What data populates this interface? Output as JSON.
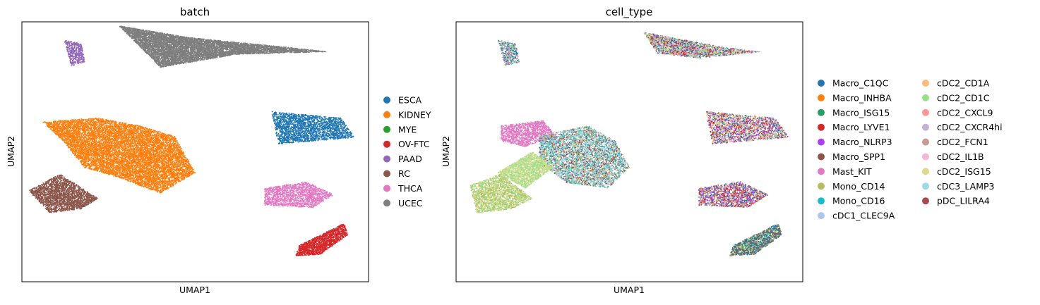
{
  "chart_data": [
    {
      "type": "scatter",
      "title": "batch",
      "xlabel": "UMAP1",
      "ylabel": "UMAP2",
      "grid": false,
      "ticks": false,
      "legend_position": "right",
      "legend": [
        {
          "label": "ESCA",
          "color": "#1f77b4"
        },
        {
          "label": "KIDNEY",
          "color": "#ff7f0e"
        },
        {
          "label": "MYE",
          "color": "#2ca02c"
        },
        {
          "label": "OV-FTC",
          "color": "#d62728"
        },
        {
          "label": "PAAD",
          "color": "#9467bd"
        },
        {
          "label": "RC",
          "color": "#8c564b"
        },
        {
          "label": "THCA",
          "color": "#e377c2"
        },
        {
          "label": "UCEC",
          "color": "#7f7f7f"
        }
      ],
      "clusters": [
        {
          "batch": "UCEC",
          "points": [
            [
              0.28,
              0.015
            ],
            [
              0.48,
              0.06
            ],
            [
              0.78,
              0.1
            ],
            [
              0.88,
              0.115
            ],
            [
              0.62,
              0.125
            ],
            [
              0.4,
              0.175
            ]
          ]
        },
        {
          "batch": "PAAD",
          "points": [
            [
              0.122,
              0.07
            ],
            [
              0.172,
              0.085
            ],
            [
              0.182,
              0.155
            ],
            [
              0.142,
              0.17
            ]
          ]
        },
        {
          "batch": "ESCA",
          "points": [
            [
              0.72,
              0.345
            ],
            [
              0.92,
              0.37
            ],
            [
              0.96,
              0.445
            ],
            [
              0.74,
              0.47
            ]
          ]
        },
        {
          "batch": "KIDNEY",
          "points": [
            [
              0.06,
              0.385
            ],
            [
              0.22,
              0.37
            ],
            [
              0.34,
              0.4
            ],
            [
              0.44,
              0.44
            ],
            [
              0.5,
              0.58
            ],
            [
              0.4,
              0.66
            ],
            [
              0.28,
              0.6
            ],
            [
              0.18,
              0.56
            ],
            [
              0.12,
              0.46
            ]
          ]
        },
        {
          "batch": "RC",
          "points": [
            [
              0.02,
              0.65
            ],
            [
              0.11,
              0.585
            ],
            [
              0.22,
              0.68
            ],
            [
              0.17,
              0.72
            ],
            [
              0.08,
              0.735
            ]
          ]
        },
        {
          "batch": "THCA",
          "points": [
            [
              0.7,
              0.64
            ],
            [
              0.82,
              0.615
            ],
            [
              0.9,
              0.665
            ],
            [
              0.84,
              0.715
            ],
            [
              0.7,
              0.705
            ]
          ]
        },
        {
          "batch": "OV-FTC",
          "points": [
            [
              0.8,
              0.86
            ],
            [
              0.93,
              0.775
            ],
            [
              0.94,
              0.82
            ],
            [
              0.86,
              0.895
            ],
            [
              0.79,
              0.9
            ]
          ]
        }
      ]
    },
    {
      "type": "scatter",
      "title": "cell_type",
      "xlabel": "UMAP1",
      "ylabel": "UMAP2",
      "grid": false,
      "ticks": false,
      "legend_position": "right",
      "legend": [
        {
          "label": "Macro_C1QC",
          "color": "#1f77b4"
        },
        {
          "label": "Macro_INHBA",
          "color": "#ff7f0e"
        },
        {
          "label": "Macro_ISG15",
          "color": "#279e68"
        },
        {
          "label": "Macro_LYVE1",
          "color": "#d62728"
        },
        {
          "label": "Macro_NLRP3",
          "color": "#aa40fc"
        },
        {
          "label": "Macro_SPP1",
          "color": "#8c564b"
        },
        {
          "label": "Mast_KIT",
          "color": "#e377c2"
        },
        {
          "label": "Mono_CD14",
          "color": "#b5bd61"
        },
        {
          "label": "Mono_CD16",
          "color": "#17becf"
        },
        {
          "label": "cDC1_CLEC9A",
          "color": "#aec7e8"
        },
        {
          "label": "cDC2_CD1A",
          "color": "#ffbb78"
        },
        {
          "label": "cDC2_CD1C",
          "color": "#98df8a"
        },
        {
          "label": "cDC2_CXCL9",
          "color": "#ff9896"
        },
        {
          "label": "cDC2_CXCR4hi",
          "color": "#c5b0d5"
        },
        {
          "label": "cDC2_FCN1",
          "color": "#c49c94"
        },
        {
          "label": "cDC2_IL1B",
          "color": "#f7b6d2"
        },
        {
          "label": "cDC2_ISG15",
          "color": "#dbdb8d"
        },
        {
          "label": "cDC3_LAMP3",
          "color": "#9edae5"
        },
        {
          "label": "pDC_LILRA4",
          "color": "#ad494a"
        }
      ],
      "clusters": [
        {
          "types": [
            "Mast_KIT",
            "Macro_C1QC",
            "cDC2_CD1C"
          ],
          "points": [
            [
              0.122,
              0.07
            ],
            [
              0.172,
              0.085
            ],
            [
              0.182,
              0.155
            ],
            [
              0.142,
              0.17
            ]
          ]
        },
        {
          "types": [
            "cDC2_CD1C",
            "Macro_C1QC",
            "Mast_KIT",
            "Macro_LYVE1",
            "cDC3_LAMP3",
            "cDC2_ISG15"
          ],
          "points": [
            [
              0.54,
              0.04
            ],
            [
              0.62,
              0.06
            ],
            [
              0.78,
              0.1
            ],
            [
              0.88,
              0.115
            ],
            [
              0.7,
              0.14
            ],
            [
              0.58,
              0.12
            ]
          ]
        },
        {
          "types": [
            "Macro_LYVE1",
            "cDC2_CD1C",
            "Macro_C1QC",
            "cDC2_ISG15",
            "Macro_NLRP3",
            "cDC2_CXCL9"
          ],
          "points": [
            [
              0.72,
              0.345
            ],
            [
              0.92,
              0.37
            ],
            [
              0.96,
              0.445
            ],
            [
              0.74,
              0.47
            ]
          ]
        },
        {
          "types": [
            "Mast_KIT"
          ],
          "points": [
            [
              0.13,
              0.4
            ],
            [
              0.25,
              0.38
            ],
            [
              0.29,
              0.44
            ],
            [
              0.2,
              0.48
            ],
            [
              0.13,
              0.46
            ]
          ]
        },
        {
          "types": [
            "Mono_CD16",
            "cDC3_LAMP3",
            "cDC1_CLEC9A",
            "Mono_CD14",
            "pDC_LILRA4"
          ],
          "points": [
            [
              0.24,
              0.44
            ],
            [
              0.38,
              0.4
            ],
            [
              0.46,
              0.46
            ],
            [
              0.5,
              0.56
            ],
            [
              0.44,
              0.64
            ],
            [
              0.32,
              0.62
            ],
            [
              0.24,
              0.54
            ]
          ]
        },
        {
          "types": [
            "cDC2_CD1C",
            "cDC2_ISG15"
          ],
          "points": [
            [
              0.12,
              0.58
            ],
            [
              0.22,
              0.5
            ],
            [
              0.28,
              0.56
            ],
            [
              0.2,
              0.64
            ]
          ]
        },
        {
          "types": [
            "cDC2_ISG15",
            "Mono_CD14",
            "cDC2_CD1C"
          ],
          "points": [
            [
              0.04,
              0.63
            ],
            [
              0.13,
              0.585
            ],
            [
              0.22,
              0.68
            ],
            [
              0.16,
              0.72
            ],
            [
              0.06,
              0.735
            ]
          ]
        },
        {
          "types": [
            "Macro_NLRP3",
            "Macro_LYVE1",
            "Macro_INHBA",
            "Macro_C1QC",
            "cDC1_CLEC9A"
          ],
          "points": [
            [
              0.7,
              0.64
            ],
            [
              0.82,
              0.615
            ],
            [
              0.9,
              0.665
            ],
            [
              0.84,
              0.715
            ],
            [
              0.7,
              0.705
            ]
          ]
        },
        {
          "types": [
            "Macro_C1QC",
            "Macro_SPP1",
            "cDC2_CD1C"
          ],
          "points": [
            [
              0.8,
              0.86
            ],
            [
              0.93,
              0.775
            ],
            [
              0.94,
              0.82
            ],
            [
              0.86,
              0.895
            ],
            [
              0.79,
              0.9
            ]
          ]
        }
      ]
    }
  ]
}
